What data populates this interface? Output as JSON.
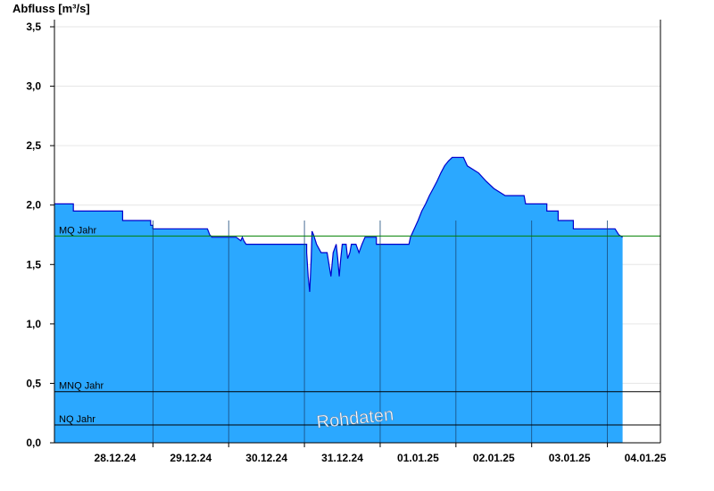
{
  "chart_data": {
    "type": "area",
    "title": "",
    "ylabel": "Abfluss [m³/s]",
    "ylim": [
      0,
      3.56
    ],
    "yticks": [
      0.0,
      0.5,
      1.0,
      1.5,
      2.0,
      2.5,
      3.0,
      3.5
    ],
    "ytick_labels": [
      "0,0",
      "0,5",
      "1,0",
      "1,5",
      "2,0",
      "2,5",
      "3,0",
      "3,5"
    ],
    "xlim_days": [
      -0.3,
      7.7
    ],
    "x_tick_labels": [
      "28.12.24",
      "29.12.24",
      "30.12.24",
      "31.12.24",
      "01.01.25",
      "02.01.25",
      "03.01.25",
      "04.01.25"
    ],
    "x_day_boundaries": [
      0,
      1,
      2,
      3,
      4,
      5,
      6,
      7
    ],
    "grid": true,
    "fill_color": "#2ba8ff",
    "line_color": "#0000cc",
    "series": [
      {
        "points": [
          [
            -0.3,
            2.01
          ],
          [
            -0.05,
            2.01
          ],
          [
            -0.05,
            1.95
          ],
          [
            0.6,
            1.95
          ],
          [
            0.6,
            1.87
          ],
          [
            0.97,
            1.87
          ],
          [
            0.97,
            1.83
          ],
          [
            1.0,
            1.83
          ],
          [
            1.0,
            1.8
          ],
          [
            1.72,
            1.8
          ],
          [
            1.75,
            1.75
          ],
          [
            1.78,
            1.73
          ],
          [
            2.1,
            1.73
          ],
          [
            2.16,
            1.7
          ],
          [
            2.18,
            1.73
          ],
          [
            2.2,
            1.7
          ],
          [
            2.23,
            1.67
          ],
          [
            2.45,
            1.67
          ],
          [
            2.8,
            1.67
          ],
          [
            3.03,
            1.67
          ],
          [
            3.03,
            1.6
          ],
          [
            3.05,
            1.4
          ],
          [
            3.07,
            1.27
          ],
          [
            3.09,
            1.55
          ],
          [
            3.1,
            1.78
          ],
          [
            3.12,
            1.75
          ],
          [
            3.16,
            1.67
          ],
          [
            3.22,
            1.6
          ],
          [
            3.3,
            1.6
          ],
          [
            3.35,
            1.4
          ],
          [
            3.38,
            1.6
          ],
          [
            3.42,
            1.67
          ],
          [
            3.44,
            1.55
          ],
          [
            3.46,
            1.4
          ],
          [
            3.48,
            1.55
          ],
          [
            3.5,
            1.67
          ],
          [
            3.55,
            1.67
          ],
          [
            3.57,
            1.55
          ],
          [
            3.6,
            1.6
          ],
          [
            3.62,
            1.67
          ],
          [
            3.68,
            1.67
          ],
          [
            3.72,
            1.6
          ],
          [
            3.76,
            1.67
          ],
          [
            3.8,
            1.73
          ],
          [
            3.95,
            1.73
          ],
          [
            3.95,
            1.67
          ],
          [
            4.05,
            1.67
          ],
          [
            4.38,
            1.67
          ],
          [
            4.4,
            1.73
          ],
          [
            4.45,
            1.8
          ],
          [
            4.5,
            1.87
          ],
          [
            4.55,
            1.95
          ],
          [
            4.6,
            2.01
          ],
          [
            4.65,
            2.08
          ],
          [
            4.7,
            2.14
          ],
          [
            4.75,
            2.2
          ],
          [
            4.8,
            2.27
          ],
          [
            4.85,
            2.33
          ],
          [
            4.9,
            2.37
          ],
          [
            4.95,
            2.4
          ],
          [
            5.1,
            2.4
          ],
          [
            5.15,
            2.33
          ],
          [
            5.3,
            2.27
          ],
          [
            5.4,
            2.2
          ],
          [
            5.5,
            2.14
          ],
          [
            5.65,
            2.08
          ],
          [
            5.9,
            2.08
          ],
          [
            5.92,
            2.01
          ],
          [
            6.2,
            2.01
          ],
          [
            6.2,
            1.95
          ],
          [
            6.35,
            1.95
          ],
          [
            6.35,
            1.87
          ],
          [
            6.55,
            1.87
          ],
          [
            6.55,
            1.8
          ],
          [
            7.1,
            1.8
          ],
          [
            7.15,
            1.75
          ],
          [
            7.2,
            1.73
          ]
        ]
      }
    ],
    "reference_lines": [
      {
        "label": "MQ Jahr",
        "value": 1.74,
        "color": "#008000"
      },
      {
        "label": "MNQ Jahr",
        "value": 0.43,
        "color": "#000000"
      },
      {
        "label": "NQ Jahr",
        "value": 0.15,
        "color": "#000000"
      }
    ],
    "watermark": "Rohdaten"
  }
}
